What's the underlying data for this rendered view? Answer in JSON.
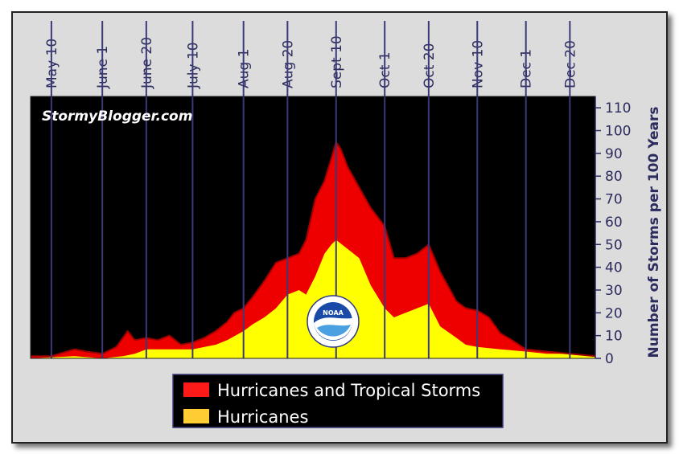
{
  "chart_data": {
    "type": "area",
    "title": "",
    "watermark": "StormyBlogger.com",
    "xlabel": "",
    "ylabel": "Number of Storms per 100 Years",
    "ylim": [
      0,
      115
    ],
    "y_ticks": [
      0,
      10,
      20,
      30,
      40,
      50,
      60,
      70,
      80,
      90,
      100,
      110
    ],
    "x_range": [
      "2000-05-01",
      "2000-12-31"
    ],
    "x_ticks": [
      {
        "label": "May 10",
        "date": "2000-05-10"
      },
      {
        "label": "June 1",
        "date": "2000-06-01"
      },
      {
        "label": "June 20",
        "date": "2000-06-20"
      },
      {
        "label": "July 10",
        "date": "2000-07-10"
      },
      {
        "label": "Aug 1",
        "date": "2000-08-01"
      },
      {
        "label": "Aug 20",
        "date": "2000-08-20"
      },
      {
        "label": "Sept 10",
        "date": "2000-09-10"
      },
      {
        "label": "Oct 1",
        "date": "2000-10-01"
      },
      {
        "label": "Oct 20",
        "date": "2000-10-20"
      },
      {
        "label": "Nov 10",
        "date": "2000-11-10"
      },
      {
        "label": "Dec 1",
        "date": "2000-12-01"
      },
      {
        "label": "Dec 20",
        "date": "2000-12-20"
      }
    ],
    "legend_position": "bottom",
    "colors": {
      "plot_bg": "#000000",
      "grid": "#3a3a7a",
      "frame_bg": "#dcdcdc",
      "text": "#2b2b5e"
    },
    "series": [
      {
        "name": "Hurricanes and Tropical Storms",
        "color": "#ee0000",
        "x": [
          "2000-05-01",
          "2000-05-10",
          "2000-05-20",
          "2000-05-25",
          "2000-06-01",
          "2000-06-07",
          "2000-06-12",
          "2000-06-15",
          "2000-06-20",
          "2000-06-25",
          "2000-06-30",
          "2000-07-05",
          "2000-07-10",
          "2000-07-15",
          "2000-07-20",
          "2000-07-25",
          "2000-07-28",
          "2000-08-01",
          "2000-08-05",
          "2000-08-10",
          "2000-08-15",
          "2000-08-20",
          "2000-08-25",
          "2000-08-28",
          "2000-09-01",
          "2000-09-05",
          "2000-09-08",
          "2000-09-10",
          "2000-09-12",
          "2000-09-15",
          "2000-09-20",
          "2000-09-25",
          "2000-10-01",
          "2000-10-05",
          "2000-10-10",
          "2000-10-15",
          "2000-10-20",
          "2000-10-25",
          "2000-11-01",
          "2000-11-05",
          "2000-11-10",
          "2000-11-15",
          "2000-11-20",
          "2000-11-25",
          "2000-12-01",
          "2000-12-10",
          "2000-12-20",
          "2000-12-31"
        ],
        "values": [
          1,
          1,
          4,
          3,
          2,
          5,
          12,
          8,
          9,
          8,
          10,
          6,
          7,
          9,
          12,
          16,
          20,
          22,
          27,
          34,
          42,
          44,
          46,
          52,
          70,
          78,
          88,
          95,
          92,
          84,
          75,
          66,
          58,
          44,
          44,
          46,
          50,
          38,
          25,
          22,
          21,
          18,
          11,
          8,
          4,
          3,
          2,
          1
        ]
      },
      {
        "name": "Hurricanes",
        "color": "#ffff00",
        "x": [
          "2000-05-01",
          "2000-05-20",
          "2000-06-01",
          "2000-06-10",
          "2000-06-15",
          "2000-06-20",
          "2000-07-01",
          "2000-07-10",
          "2000-07-20",
          "2000-07-25",
          "2000-08-01",
          "2000-08-05",
          "2000-08-10",
          "2000-08-15",
          "2000-08-20",
          "2000-08-25",
          "2000-08-28",
          "2000-09-01",
          "2000-09-05",
          "2000-09-08",
          "2000-09-10",
          "2000-09-15",
          "2000-09-20",
          "2000-09-25",
          "2000-10-01",
          "2000-10-05",
          "2000-10-10",
          "2000-10-15",
          "2000-10-20",
          "2000-10-25",
          "2000-11-01",
          "2000-11-05",
          "2000-11-10",
          "2000-11-20",
          "2000-12-01",
          "2000-12-10",
          "2000-12-20",
          "2000-12-31"
        ],
        "values": [
          0,
          1,
          0,
          1,
          2,
          4,
          4,
          4,
          6,
          8,
          12,
          15,
          18,
          22,
          28,
          30,
          28,
          36,
          46,
          50,
          52,
          48,
          44,
          32,
          22,
          18,
          20,
          22,
          24,
          14,
          9,
          6,
          5,
          4,
          3,
          2,
          2,
          1
        ]
      }
    ]
  }
}
